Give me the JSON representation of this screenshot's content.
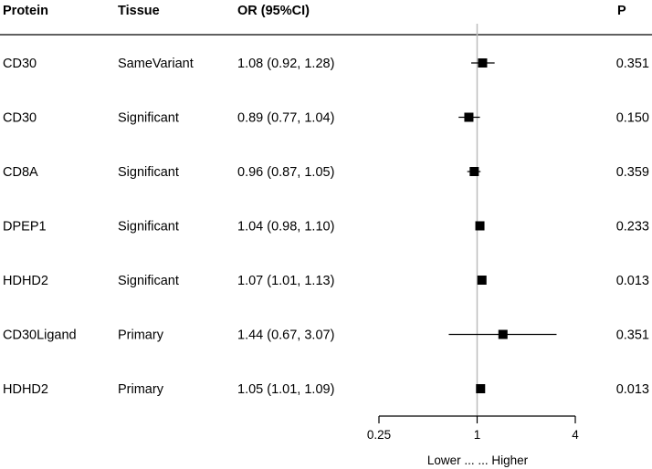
{
  "headers": {
    "protein": "Protein",
    "tissue": "Tissue",
    "or": "OR (95%CI)",
    "p": "P"
  },
  "x_axis_note": "Lower ... ... Higher",
  "chart_data": {
    "type": "forest",
    "x_scale": "log2",
    "xlim": [
      0.25,
      4
    ],
    "x_ticks": [
      0.25,
      1,
      4
    ],
    "x_tick_labels": [
      "0.25",
      "1",
      "4"
    ],
    "reference_line": 1,
    "rows": [
      {
        "protein": "CD30",
        "tissue": "SameVariant",
        "or": 1.08,
        "lo": 0.92,
        "hi": 1.28,
        "or_text": "1.08 (0.92, 1.28)",
        "p": "0.351"
      },
      {
        "protein": "CD30",
        "tissue": "Significant",
        "or": 0.89,
        "lo": 0.77,
        "hi": 1.04,
        "or_text": "0.89 (0.77, 1.04)",
        "p": "0.150"
      },
      {
        "protein": "CD8A",
        "tissue": "Significant",
        "or": 0.96,
        "lo": 0.87,
        "hi": 1.05,
        "or_text": "0.96 (0.87, 1.05)",
        "p": "0.359"
      },
      {
        "protein": "DPEP1",
        "tissue": "Significant",
        "or": 1.04,
        "lo": 0.98,
        "hi": 1.1,
        "or_text": "1.04 (0.98, 1.10)",
        "p": "0.233"
      },
      {
        "protein": "HDHD2",
        "tissue": "Significant",
        "or": 1.07,
        "lo": 1.01,
        "hi": 1.13,
        "or_text": "1.07 (1.01, 1.13)",
        "p": "0.013"
      },
      {
        "protein": "CD30Ligand",
        "tissue": "Primary",
        "or": 1.44,
        "lo": 0.67,
        "hi": 3.07,
        "or_text": "1.44 (0.67, 3.07)",
        "p": "0.351"
      },
      {
        "protein": "HDHD2",
        "tissue": "Primary",
        "or": 1.05,
        "lo": 1.01,
        "hi": 1.09,
        "or_text": "1.05 (1.01, 1.09)",
        "p": "0.013"
      }
    ]
  }
}
